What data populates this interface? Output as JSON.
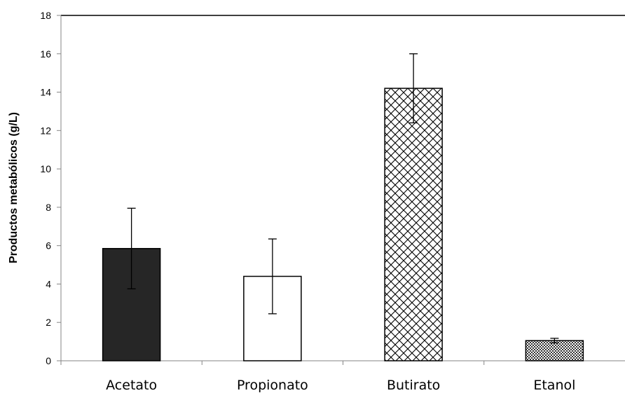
{
  "chart_data": {
    "type": "bar",
    "title": "",
    "xlabel": "",
    "ylabel": "Productos metabólicos (g/L)",
    "ylim": [
      0,
      18
    ],
    "yticks": [
      0,
      2,
      4,
      6,
      8,
      10,
      12,
      14,
      16,
      18
    ],
    "categories": [
      "Acetato",
      "Propionato",
      "Butirato",
      "Etanol"
    ],
    "values": [
      5.85,
      4.4,
      14.2,
      1.05
    ],
    "errors": [
      2.1,
      1.95,
      1.8,
      0.12
    ],
    "bar_styles": [
      "solid-dark",
      "white",
      "crosshatch",
      "fine-check"
    ],
    "colors": {
      "dark_fill": "#262626",
      "outline": "#000000",
      "axis": "#868686"
    },
    "grid": false,
    "legend": "none"
  }
}
